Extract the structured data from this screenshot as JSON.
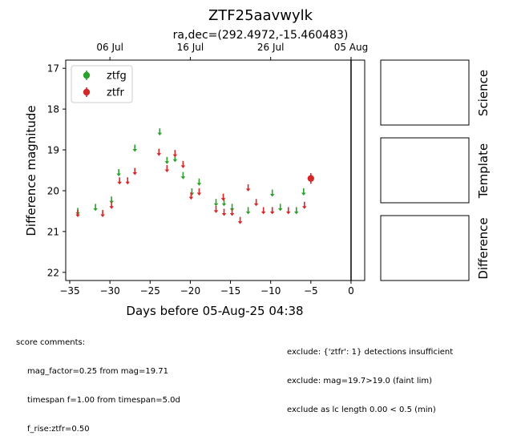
{
  "chart_data": {
    "type": "scatter",
    "title": "ZTF25aavwylk",
    "subtitle": "ra,dec=(292.4972,-15.460483)",
    "xlabel": "Days before 05-Aug-25 04:38",
    "ylabel": "Difference magnitude",
    "xlim": [
      -35.5,
      1.7
    ],
    "ylim": [
      22.2,
      16.8
    ],
    "y_inverted": true,
    "x_ticks": [
      -35,
      -30,
      -25,
      -20,
      -15,
      -10,
      -5,
      0
    ],
    "y_ticks": [
      17,
      18,
      19,
      20,
      21,
      22
    ],
    "top_axis_ticks": [
      {
        "label": "06 Jul",
        "x": -30
      },
      {
        "label": "16 Jul",
        "x": -20
      },
      {
        "label": "26 Jul",
        "x": -10
      },
      {
        "label": "05 Aug",
        "x": 0
      }
    ],
    "reference_line_x": 0,
    "legend": {
      "position": "top-left",
      "entries": [
        "ztfg",
        "ztfr"
      ]
    },
    "colors": {
      "ztfg": "#2ca02c",
      "ztfr": "#d62728",
      "reference_line": "#000000"
    },
    "series": [
      {
        "name": "ztfg",
        "kind": "upper_limit",
        "points": [
          {
            "x": -34.0,
            "y": 20.5
          },
          {
            "x": -31.8,
            "y": 20.4
          },
          {
            "x": -29.8,
            "y": 20.22
          },
          {
            "x": -28.9,
            "y": 19.55
          },
          {
            "x": -26.9,
            "y": 18.95
          },
          {
            "x": -23.8,
            "y": 18.55
          },
          {
            "x": -22.9,
            "y": 19.25
          },
          {
            "x": -21.9,
            "y": 19.2
          },
          {
            "x": -20.9,
            "y": 19.62
          },
          {
            "x": -19.8,
            "y": 20.02
          },
          {
            "x": -18.9,
            "y": 19.78
          },
          {
            "x": -16.8,
            "y": 20.28
          },
          {
            "x": -15.8,
            "y": 20.28
          },
          {
            "x": -14.8,
            "y": 20.4
          },
          {
            "x": -12.8,
            "y": 20.48
          },
          {
            "x": -9.8,
            "y": 20.05
          },
          {
            "x": -8.8,
            "y": 20.4
          },
          {
            "x": -6.8,
            "y": 20.48
          },
          {
            "x": -5.9,
            "y": 20.02
          }
        ]
      },
      {
        "name": "ztfr",
        "kind": "upper_limit",
        "points": [
          {
            "x": -34.0,
            "y": 20.55
          },
          {
            "x": -30.9,
            "y": 20.55
          },
          {
            "x": -29.8,
            "y": 20.35
          },
          {
            "x": -28.8,
            "y": 19.75
          },
          {
            "x": -27.8,
            "y": 19.75
          },
          {
            "x": -26.9,
            "y": 19.52
          },
          {
            "x": -23.9,
            "y": 19.05
          },
          {
            "x": -22.9,
            "y": 19.45
          },
          {
            "x": -21.9,
            "y": 19.08
          },
          {
            "x": -20.9,
            "y": 19.35
          },
          {
            "x": -19.9,
            "y": 20.12
          },
          {
            "x": -18.9,
            "y": 20.02
          },
          {
            "x": -16.8,
            "y": 20.45
          },
          {
            "x": -15.9,
            "y": 20.15
          },
          {
            "x": -15.8,
            "y": 20.52
          },
          {
            "x": -14.8,
            "y": 20.52
          },
          {
            "x": -13.8,
            "y": 20.72
          },
          {
            "x": -12.8,
            "y": 19.92
          },
          {
            "x": -11.8,
            "y": 20.28
          },
          {
            "x": -10.9,
            "y": 20.48
          },
          {
            "x": -9.8,
            "y": 20.48
          },
          {
            "x": -7.8,
            "y": 20.48
          },
          {
            "x": -5.8,
            "y": 20.35
          }
        ]
      },
      {
        "name": "ztfr",
        "kind": "detection",
        "points": [
          {
            "x": -5.0,
            "y": 19.7,
            "err": 0.13
          }
        ]
      }
    ]
  },
  "thumbnails": {
    "labels": [
      "Science",
      "Template",
      "Difference"
    ]
  },
  "comments": {
    "left_header": "score comments:",
    "left_lines": [
      "mag_factor=0.25 from mag=19.71",
      "timespan f=1.00 from timespan=5.0d",
      "f_rise:ztfr=0.50"
    ],
    "right_lines": [
      "exclude: {'ztfr': 1} detections insufficient",
      "exclude: mag=19.7>19.0 (faint lim)",
      "exclude as lc length 0.00 < 0.5 (min)"
    ]
  }
}
